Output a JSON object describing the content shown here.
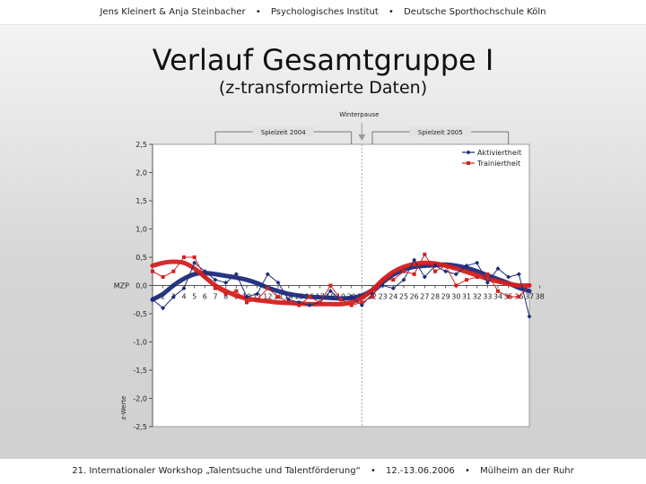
{
  "header": {
    "authors": "Jens Kleinert & Anja Steinbacher",
    "institute": "Psychologisches Institut",
    "university": "Deutsche Sporthochschule Köln",
    "separator": "•"
  },
  "slide": {
    "title": "Verlauf Gesamtgruppe I",
    "subtitle": "(z-transformierte Daten)"
  },
  "footer": {
    "event": "21. Internationaler Workshop „Talentsuche und Talentförderung“",
    "date": "12.-13.06.2006",
    "place": "Mülheim an der Ruhr",
    "separator": "•"
  },
  "chart_data": {
    "type": "line",
    "ylabel": "z-Werte",
    "xlabel": "MZP",
    "ylim": [
      -2.5,
      2.5
    ],
    "yticks": [
      "2,5",
      "2,0",
      "1,5",
      "1,0",
      "0,5",
      "0,0",
      "-0,5",
      "-1,0",
      "-1,5",
      "-2,0",
      "-2,5"
    ],
    "ytick_values": [
      2.5,
      2.0,
      1.5,
      1.0,
      0.5,
      0.0,
      -0.5,
      -1.0,
      -1.5,
      -2.0,
      -2.5
    ],
    "x_min": 1,
    "x_max": 37,
    "xtick_labels": [
      "2",
      "3",
      "4",
      "5",
      "6",
      "7",
      "8",
      "9",
      "10",
      "11",
      "12",
      "13",
      "14",
      "15",
      "16",
      "17",
      "18",
      "19",
      "20",
      "21",
      "22",
      "23",
      "24",
      "25",
      "26",
      "27",
      "28",
      "29",
      "30",
      "31",
      "32",
      "33",
      "34",
      "35",
      "36",
      "37",
      "38"
    ],
    "xtick_positions": [
      2,
      3,
      4,
      5,
      6,
      7,
      8,
      9,
      10,
      11,
      12,
      13,
      14,
      15,
      16,
      17,
      18,
      19,
      20,
      21,
      22,
      23,
      24,
      25,
      26,
      27,
      28,
      29,
      30,
      31,
      32,
      33,
      34,
      35,
      36,
      37,
      38
    ],
    "period_labels": {
      "season_2004": "Spielzeit 2004",
      "season_2005": "Spielzeit 2005",
      "winter_break": "Winterpause"
    },
    "season_2004_range": [
      7,
      20
    ],
    "season_2005_range": [
      22,
      35
    ],
    "winter_break_x": 21,
    "legend_position": "top-right",
    "series": [
      {
        "name": "Aktiviertheit",
        "color": "#1c2b7a",
        "x": [
          1,
          2,
          3,
          4,
          5,
          6,
          7,
          8,
          9,
          10,
          11,
          12,
          13,
          14,
          15,
          16,
          17,
          18,
          19,
          20,
          21,
          22,
          23,
          24,
          25,
          26,
          27,
          28,
          29,
          30,
          31,
          32,
          33,
          34,
          35,
          36,
          37
        ],
        "values": [
          -0.25,
          -0.4,
          -0.2,
          -0.05,
          0.4,
          0.25,
          0.1,
          0.05,
          0.2,
          -0.2,
          -0.15,
          0.2,
          0.05,
          -0.25,
          -0.3,
          -0.35,
          -0.3,
          -0.1,
          -0.25,
          -0.2,
          -0.35,
          -0.15,
          0.0,
          -0.05,
          0.1,
          0.45,
          0.15,
          0.35,
          0.25,
          0.2,
          0.35,
          0.4,
          0.05,
          0.3,
          0.15,
          0.2,
          -0.55
        ]
      },
      {
        "name": "Trainiertheit",
        "color": "#d42020",
        "x": [
          1,
          2,
          3,
          4,
          5,
          6,
          7,
          8,
          9,
          10,
          11,
          12,
          13,
          14,
          15,
          16,
          17,
          18,
          19,
          20,
          21,
          22,
          23,
          24,
          25,
          26,
          27,
          28,
          29,
          30,
          31,
          32,
          33,
          34,
          35,
          36,
          37
        ],
        "values": [
          0.25,
          0.15,
          0.25,
          0.5,
          0.5,
          0.15,
          -0.05,
          -0.15,
          -0.1,
          -0.3,
          -0.25,
          -0.05,
          -0.2,
          -0.3,
          -0.35,
          -0.2,
          -0.3,
          0.0,
          -0.25,
          -0.35,
          -0.3,
          -0.2,
          0.1,
          0.1,
          0.25,
          0.2,
          0.55,
          0.25,
          0.35,
          0.0,
          0.1,
          0.15,
          0.2,
          -0.1,
          -0.2,
          -0.2,
          0.0
        ]
      }
    ],
    "trend_series": [
      {
        "name": "Aktiviertheit",
        "color": "#1c2b7a",
        "x": [
          1,
          2,
          3,
          4,
          5,
          6,
          7,
          8,
          9,
          10,
          11,
          12,
          13,
          14,
          15,
          16,
          17,
          18,
          19,
          20,
          21,
          22,
          23,
          24,
          25,
          26,
          27,
          28,
          29,
          30,
          31,
          32,
          33,
          34,
          35,
          36,
          37
        ],
        "values": [
          -0.25,
          -0.15,
          0.0,
          0.12,
          0.2,
          0.22,
          0.2,
          0.17,
          0.14,
          0.1,
          0.04,
          -0.04,
          -0.1,
          -0.15,
          -0.18,
          -0.2,
          -0.21,
          -0.22,
          -0.23,
          -0.22,
          -0.18,
          -0.08,
          0.06,
          0.19,
          0.28,
          0.33,
          0.35,
          0.36,
          0.37,
          0.35,
          0.31,
          0.25,
          0.18,
          0.11,
          0.04,
          -0.04,
          -0.1
        ]
      },
      {
        "name": "Trainiertheit",
        "color": "#d42020",
        "x": [
          1,
          2,
          3,
          4,
          5,
          6,
          7,
          8,
          9,
          10,
          11,
          12,
          13,
          14,
          15,
          16,
          17,
          18,
          19,
          20,
          21,
          22,
          23,
          24,
          25,
          26,
          27,
          28,
          29,
          30,
          31,
          32,
          33,
          34,
          35,
          36,
          37
        ],
        "values": [
          0.35,
          0.4,
          0.42,
          0.4,
          0.3,
          0.15,
          0.0,
          -0.1,
          -0.18,
          -0.23,
          -0.26,
          -0.28,
          -0.3,
          -0.31,
          -0.32,
          -0.33,
          -0.33,
          -0.33,
          -0.33,
          -0.3,
          -0.22,
          -0.08,
          0.1,
          0.24,
          0.33,
          0.38,
          0.4,
          0.39,
          0.35,
          0.3,
          0.24,
          0.18,
          0.12,
          0.07,
          0.03,
          0.0,
          0.0
        ]
      }
    ]
  }
}
